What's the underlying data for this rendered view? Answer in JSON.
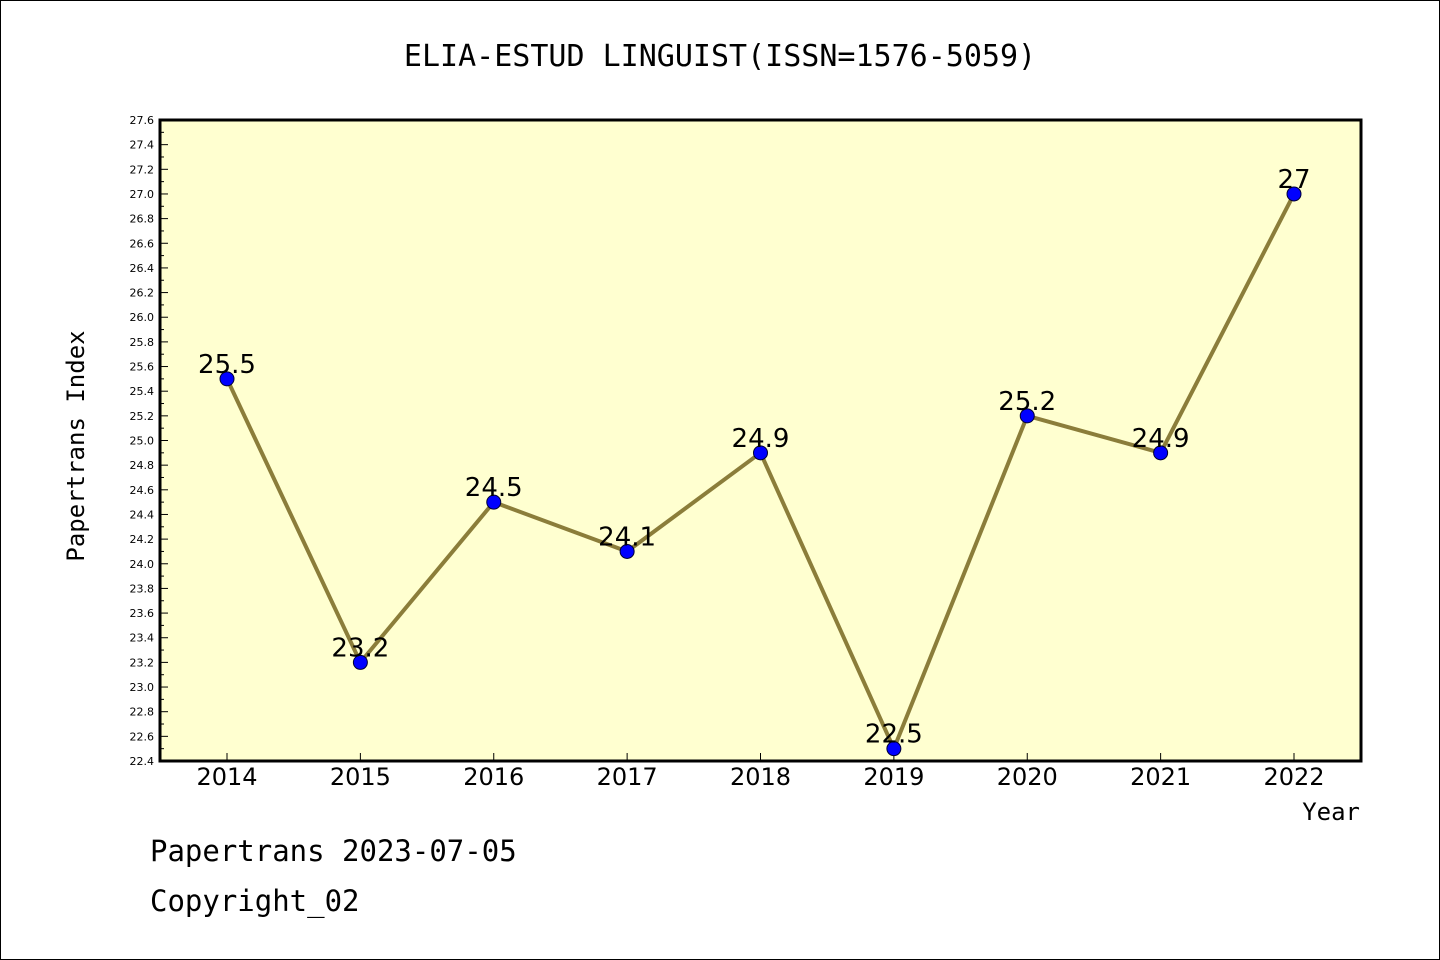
{
  "chart_data": {
    "type": "line",
    "title": "ELIA-ESTUD LINGUIST(ISSN=1576-5059)",
    "xlabel": "Year",
    "ylabel": "Papertrans Index",
    "categories": [
      "2014",
      "2015",
      "2016",
      "2017",
      "2018",
      "2019",
      "2020",
      "2021",
      "2022"
    ],
    "series": [
      {
        "values": [
          25.5,
          23.2,
          24.5,
          24.1,
          24.9,
          22.5,
          25.2,
          24.9,
          27
        ]
      }
    ],
    "data_labels": [
      "25.5",
      "23.2",
      "24.5",
      "24.1",
      "24.9",
      "22.5",
      "25.2",
      "24.9",
      "27"
    ],
    "ylim": [
      22.4,
      27.6
    ],
    "ytick_step": 0.2,
    "ytick_labels": [
      "22.4",
      "22.6",
      "22.8",
      "23.0",
      "23.2",
      "23.4",
      "23.6",
      "23.8",
      "24.0",
      "24.2",
      "24.4",
      "24.6",
      "24.8",
      "25.0",
      "25.2",
      "25.4",
      "25.6",
      "25.8",
      "26.0",
      "26.2",
      "26.4",
      "26.6",
      "26.8",
      "27.0",
      "27.2",
      "27.4",
      "27.6"
    ],
    "grid": false,
    "colors": {
      "plot_background": "#ffffd0",
      "line": "#8b7d3a",
      "marker": "#0000ff",
      "axis": "#000000"
    }
  },
  "footer": {
    "line1": "Papertrans 2023-07-05",
    "line2": "Copyright_02"
  }
}
